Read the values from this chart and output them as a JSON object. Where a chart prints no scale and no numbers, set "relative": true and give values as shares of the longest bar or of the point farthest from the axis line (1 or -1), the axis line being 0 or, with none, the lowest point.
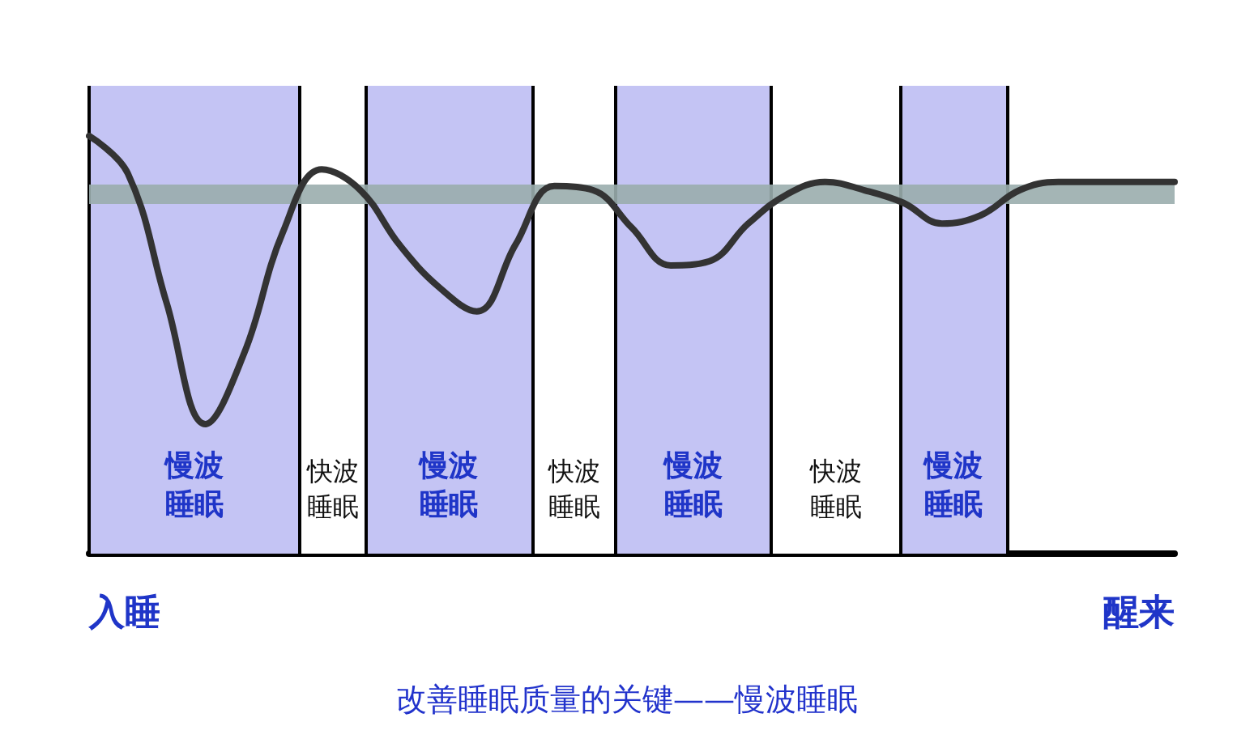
{
  "chart_data": {
    "type": "line",
    "title": "改善睡眠质量的关键——慢波睡眠",
    "relative": true,
    "grid": false,
    "marker": "none",
    "line_style": "solid",
    "categories": [
      null,
      null,
      null,
      null,
      null,
      null,
      null,
      null,
      null,
      null,
      null,
      null,
      null,
      null,
      null,
      null,
      null,
      null,
      null,
      null,
      null,
      null,
      null,
      null,
      null,
      null,
      null,
      null,
      null
    ],
    "series": [
      {
        "color": "#333333",
        "values": [
          1.0,
          0.91,
          0.6,
          0.31,
          0.48,
          0.77,
          0.92,
          0.87,
          0.74,
          0.64,
          0.58,
          0.74,
          0.88,
          0.87,
          0.78,
          0.69,
          0.7,
          0.79,
          0.86,
          0.89,
          0.87,
          0.84,
          0.79,
          0.81,
          0.87,
          0.89,
          0.89,
          0.89,
          0.89
        ]
      }
    ],
    "ref_lines": [
      {
        "axis": "y",
        "value": 0.86,
        "color": "#9aadad"
      }
    ],
    "annotations": [
      "入睡",
      "醒来",
      "慢波睡眠",
      "快波睡眠",
      "慢波睡眠",
      "快波睡眠",
      "慢波睡眠",
      "快波睡眠",
      "慢波睡眠"
    ]
  }
}
